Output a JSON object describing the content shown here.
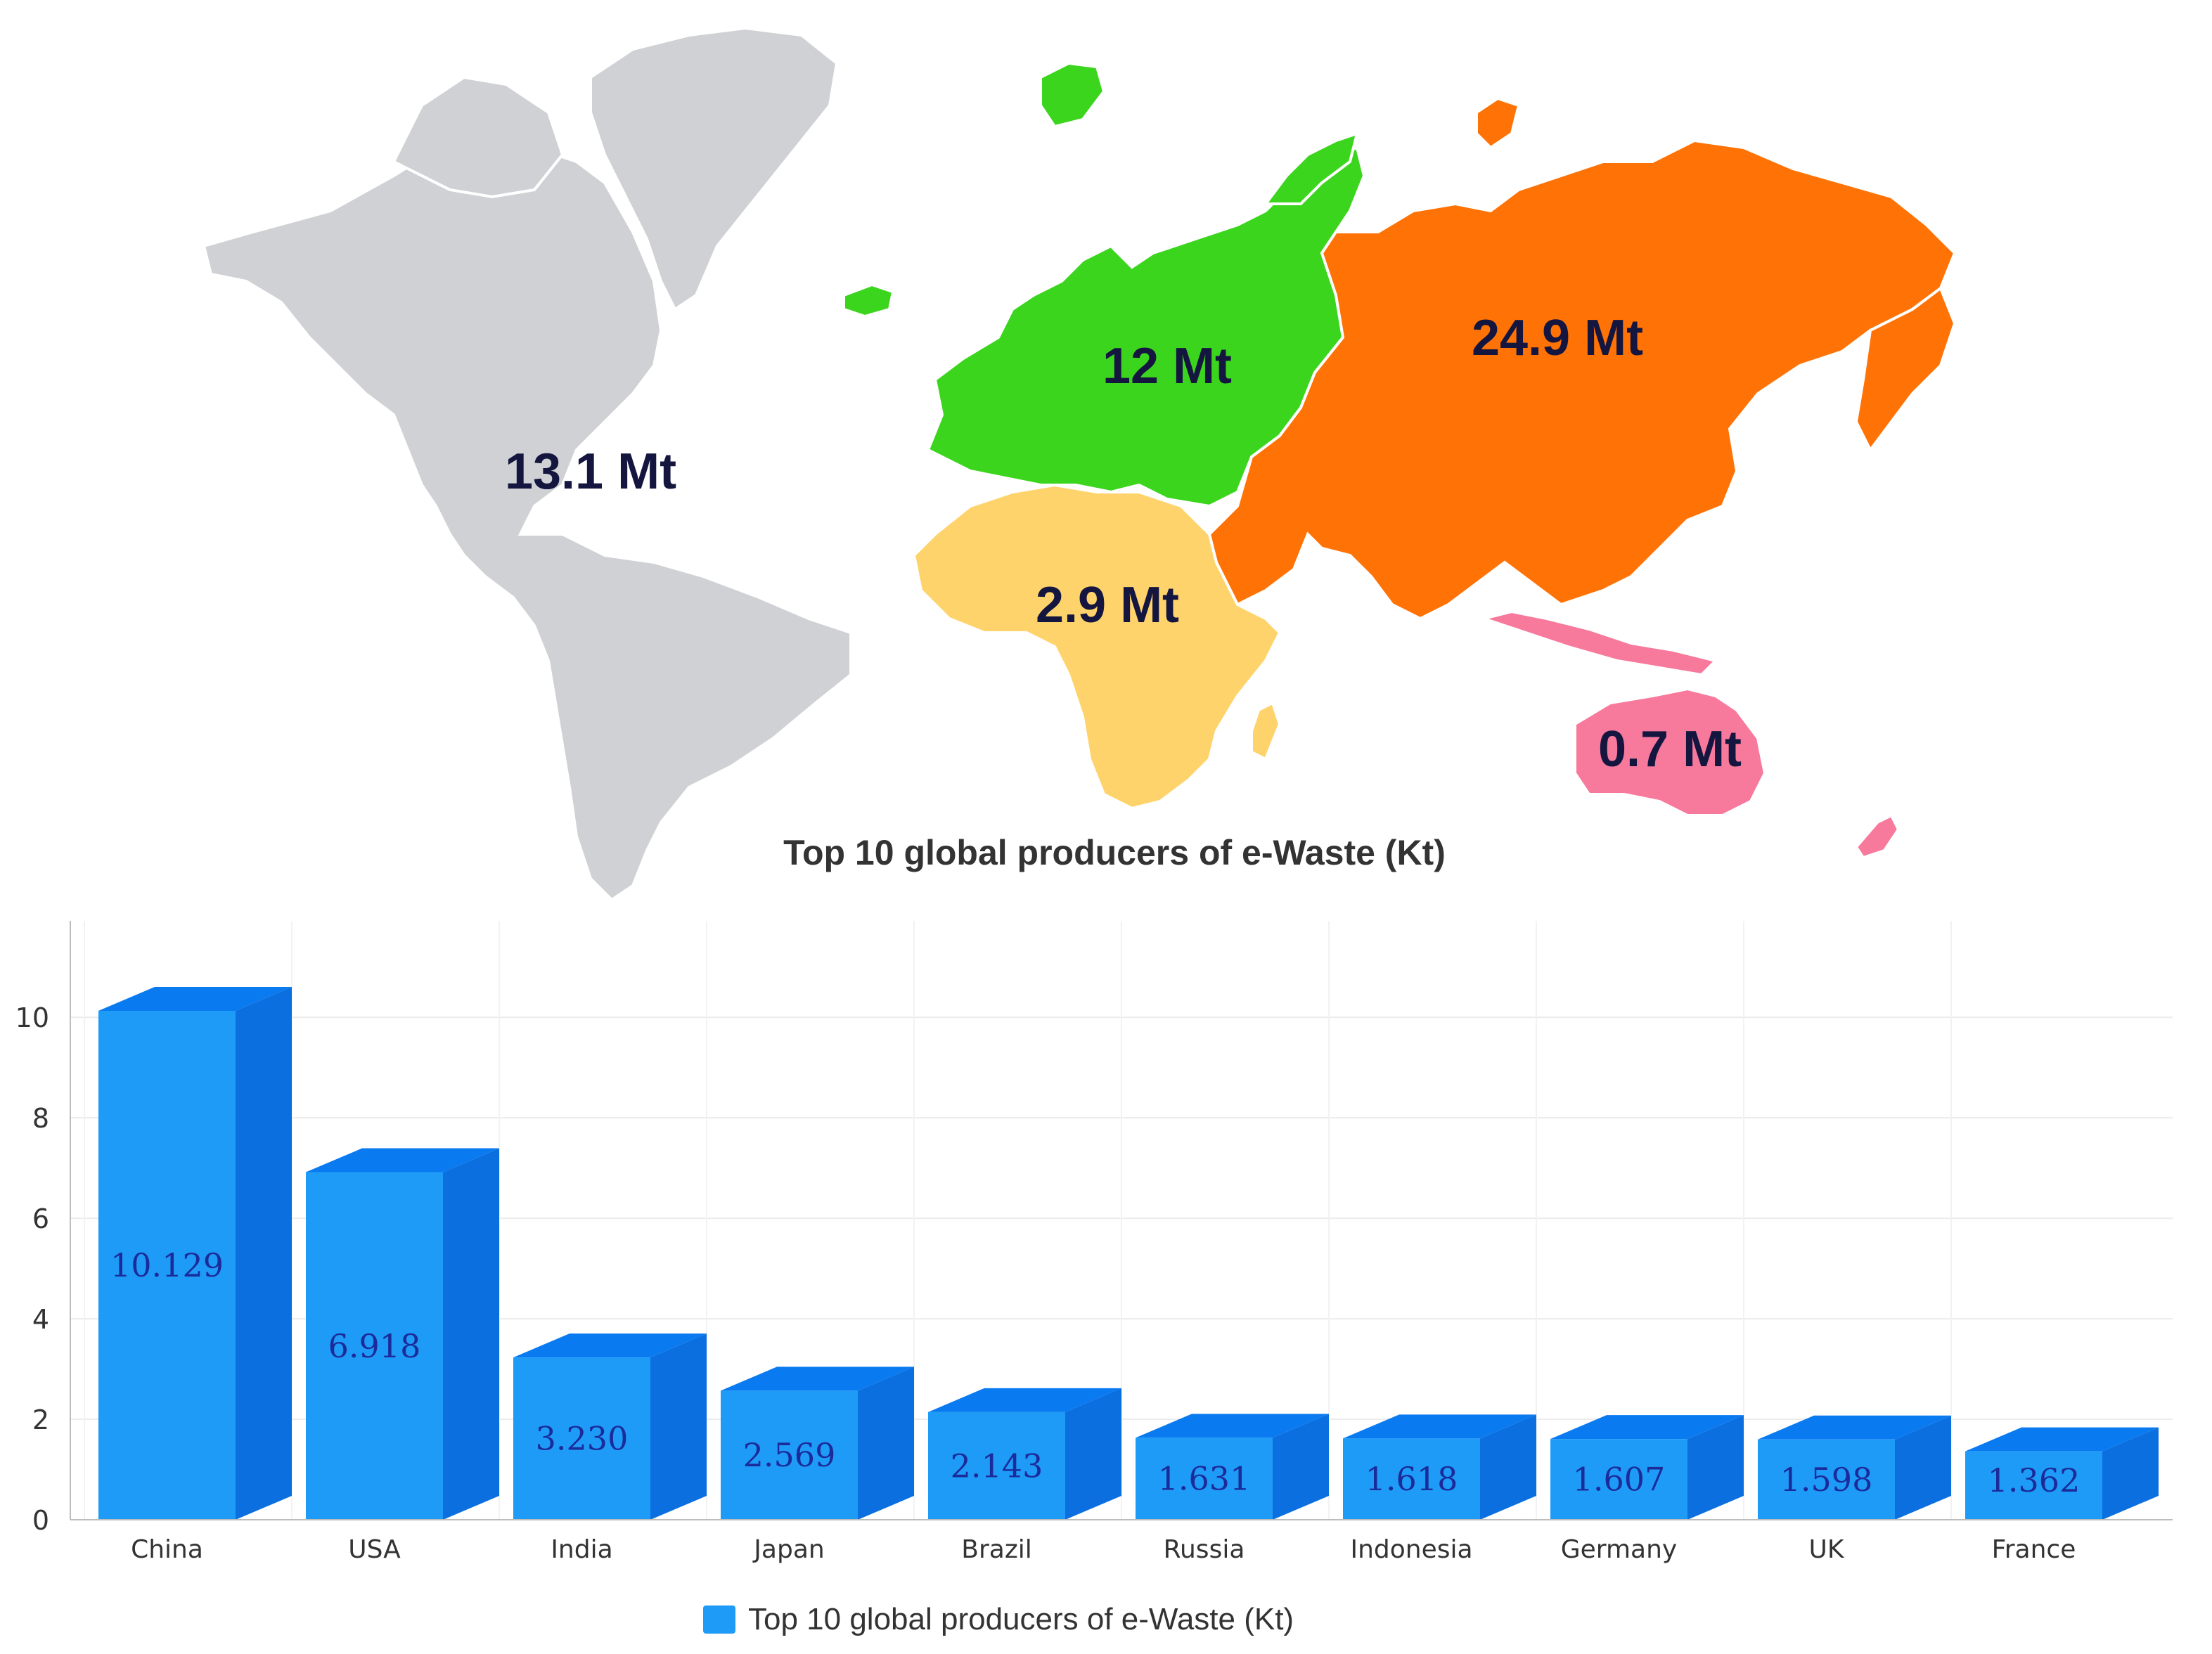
{
  "map": {
    "regions": [
      {
        "id": "americas",
        "label": "13.1 Mt",
        "color": "#d0d1d4"
      },
      {
        "id": "europe",
        "label": "12 Mt",
        "color": "#3cd51e"
      },
      {
        "id": "asia",
        "label": "24.9 Mt",
        "color": "#ff7205"
      },
      {
        "id": "africa",
        "label": "2.9 Mt",
        "color": "#ffd36b"
      },
      {
        "id": "oceania",
        "label": "0.7 Mt",
        "color": "#f7799c"
      }
    ]
  },
  "chart_data": {
    "type": "bar",
    "title": "Top 10 global producers of e-Waste (Kt)",
    "categories": [
      "China",
      "USA",
      "India",
      "Japan",
      "Brazil",
      "Russia",
      "Indonesia",
      "Germany",
      "UK",
      "France"
    ],
    "series": [
      {
        "name": "Top 10 global producers of e-Waste (Kt)",
        "values": [
          10.129,
          6.918,
          3.23,
          2.569,
          2.143,
          1.631,
          1.618,
          1.607,
          1.598,
          1.362
        ],
        "value_labels": [
          "10.129",
          "6.918",
          "3.230",
          "2.569",
          "2.143",
          "1.631",
          "1.618",
          "1.607",
          "1.598",
          "1.362"
        ],
        "color": "#1e9bf7",
        "side_color": "#0c6fe0",
        "top_color": "#0a7af0"
      }
    ],
    "yticks": [
      "0",
      "2",
      "4",
      "6",
      "8",
      "10"
    ],
    "ylim": [
      0,
      11.5
    ],
    "grid": true,
    "legend_position": "bottom-center",
    "style": "3d"
  }
}
